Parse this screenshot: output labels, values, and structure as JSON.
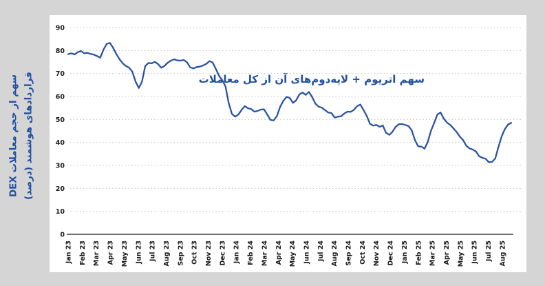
{
  "page": {
    "background_color": "#d5d5d5",
    "card_background": "#ffffff"
  },
  "chart_data": {
    "type": "line",
    "title": "",
    "annotation": "سهم اتریوم + لایه‌دوم‌های آن از کل معاملات",
    "ylabel_line1": "سهم از حجم معاملات DEX",
    "ylabel_line2": "قراردادهای هوشمند (درصد)",
    "legend": "none",
    "grid": "dotted-horizontal",
    "ylim": [
      0,
      90
    ],
    "y_ticks": [
      0,
      10,
      20,
      30,
      40,
      50,
      60,
      70,
      80,
      90
    ],
    "x_tick_labels": [
      "Jan 23",
      "Feb 23",
      "Mar 23",
      "Apr 23",
      "May 23",
      "Jun 23",
      "Jul 23",
      "Aug 23",
      "Sep 23",
      "Oct 23",
      "Nov 23",
      "Dec 23",
      "Jan 24",
      "Feb 24",
      "Mar 24",
      "Apr 24",
      "May 24",
      "Jun 24",
      "Jul 24",
      "Aug 24",
      "Sep 24",
      "Oct 24",
      "Nov 24",
      "Dec 24",
      "Jan 25",
      "Feb 25",
      "Mar 25",
      "Apr 25",
      "May 25",
      "Jun 25",
      "Jul 25",
      "Aug 25"
    ],
    "series": [
      {
        "name": "ethereum-plus-l2-share-of-dex-volume-pct",
        "cadence": "weekly",
        "values": [
          78.4,
          78.8,
          78.3,
          79.3,
          79.8,
          78.8,
          79.0,
          78.5,
          78.2,
          77.6,
          76.9,
          80.3,
          82.9,
          83.3,
          81.2,
          78.5,
          76.2,
          74.5,
          73.3,
          72.5,
          70.8,
          66.5,
          63.7,
          66.4,
          73.2,
          74.6,
          74.4,
          75.1,
          74.1,
          72.5,
          73.3,
          74.7,
          75.6,
          76.2,
          75.7,
          75.6,
          75.9,
          74.9,
          72.7,
          72.2,
          72.8,
          73.0,
          73.5,
          74.2,
          75.4,
          74.8,
          72.0,
          69.0,
          67.1,
          64.4,
          57.2,
          52.4,
          51.2,
          52.1,
          54.1,
          55.8,
          54.9,
          54.5,
          53.4,
          53.7,
          54.3,
          54.4,
          52.2,
          49.8,
          49.6,
          51.4,
          55.4,
          58.1,
          59.8,
          59.4,
          57.2,
          58.3,
          60.9,
          61.7,
          60.7,
          62.0,
          59.7,
          56.9,
          55.6,
          55.1,
          54.1,
          53.0,
          52.8,
          50.8,
          51.2,
          51.4,
          52.6,
          53.4,
          53.3,
          54.2,
          55.8,
          56.5,
          54.1,
          51.5,
          48.1,
          47.3,
          47.6,
          46.8,
          47.4,
          44.2,
          43.3,
          44.6,
          46.8,
          47.9,
          48.0,
          47.6,
          47.1,
          45.3,
          41.0,
          38.3,
          38.2,
          37.3,
          40.3,
          45.1,
          48.5,
          52.2,
          53.0,
          50.3,
          48.6,
          47.6,
          46.1,
          44.5,
          42.5,
          41.0,
          38.5,
          37.4,
          36.9,
          36.1,
          34.0,
          33.3,
          32.9,
          31.4,
          31.5,
          33.0,
          38.0,
          42.6,
          45.8,
          47.8,
          48.5
        ]
      }
    ],
    "colors": {
      "line": "#2a53a4",
      "accent_text": "#2150a0",
      "axis_text": "#1a1a1a",
      "gridline": "#c3c3c3",
      "axis_line": "#404040"
    }
  }
}
